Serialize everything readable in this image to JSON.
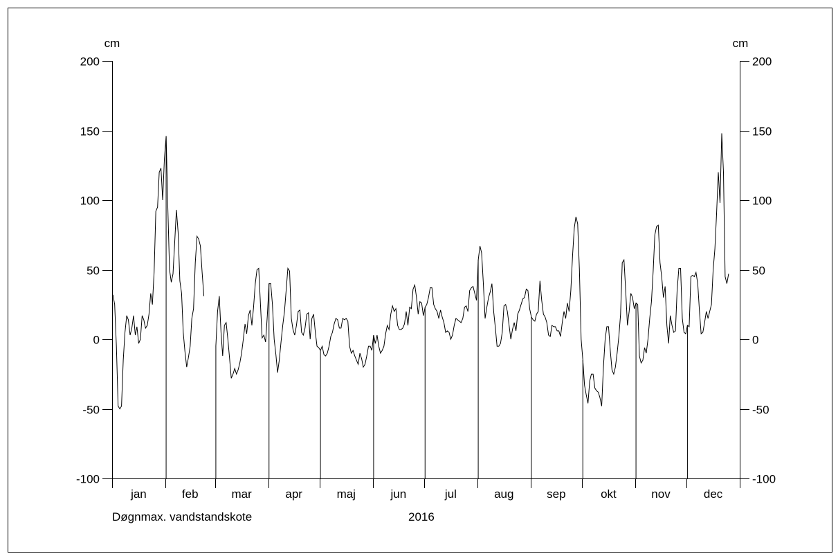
{
  "chart_data": {
    "type": "line",
    "title": "",
    "year_label": "2016",
    "series_label": "Døgnmax. vandstandskote",
    "ylabel_left": "cm",
    "ylabel_right": "cm",
    "ylim": [
      -100,
      200
    ],
    "yticks": [
      200,
      150,
      100,
      50,
      0,
      -50,
      -100
    ],
    "grid": false,
    "color": "#000000",
    "x_start": "2016-01-01",
    "x_end": "2016-12-31",
    "months": [
      "jan",
      "feb",
      "mar",
      "apr",
      "maj",
      "jun",
      "jul",
      "aug",
      "sep",
      "okt",
      "nov",
      "dec"
    ],
    "series": [
      {
        "name": "Døgnmax. vandstandskote",
        "values": [
          32,
          25,
          -5,
          -48,
          -50,
          -48,
          -15,
          5,
          17,
          14,
          3,
          8,
          17,
          3,
          9,
          -3,
          0,
          17,
          14,
          8,
          10,
          18,
          33,
          25,
          48,
          92,
          95,
          120,
          123,
          100,
          130,
          146,
          95,
          50,
          41,
          47,
          70,
          93,
          77,
          42,
          33,
          5,
          -9,
          -20,
          -13,
          -5,
          15,
          22,
          55,
          74,
          72,
          67,
          48,
          31,
          null,
          null,
          null,
          null,
          null,
          null,
          -5,
          20,
          31,
          5,
          -12,
          10,
          12,
          0,
          -14,
          -28,
          -25,
          -21,
          -25,
          -22,
          -17,
          -10,
          0,
          11,
          4,
          17,
          21,
          10,
          23,
          40,
          50,
          51,
          25,
          1,
          3,
          -2,
          17,
          40,
          40,
          25,
          0,
          -11,
          -24,
          -15,
          -2,
          10,
          20,
          35,
          51,
          49,
          15,
          7,
          3,
          10,
          20,
          21,
          5,
          3,
          8,
          18,
          19,
          0,
          15,
          18,
          5,
          -5,
          -6,
          -8,
          -5,
          -11,
          -12,
          -10,
          -5,
          2,
          5,
          11,
          15,
          14,
          8,
          8,
          15,
          14,
          15,
          13,
          -5,
          -10,
          -8,
          -12,
          -15,
          -18,
          -10,
          -14,
          -20,
          -18,
          -12,
          -5,
          -5,
          -8,
          3,
          -3,
          3,
          -5,
          -10,
          -8,
          -5,
          4,
          10,
          7,
          18,
          24,
          20,
          22,
          10,
          7,
          7,
          8,
          11,
          20,
          10,
          23,
          22,
          36,
          39,
          30,
          18,
          27,
          26,
          17,
          23,
          25,
          30,
          37,
          37,
          25,
          22,
          20,
          15,
          21,
          16,
          12,
          5,
          6,
          5,
          0,
          3,
          10,
          15,
          14,
          13,
          12,
          15,
          23,
          24,
          20,
          35,
          37,
          38,
          33,
          28,
          57,
          67,
          62,
          40,
          15,
          23,
          30,
          34,
          40,
          20,
          8,
          -5,
          -5,
          -3,
          5,
          24,
          25,
          20,
          10,
          0,
          7,
          12,
          6,
          18,
          21,
          25,
          29,
          30,
          36,
          35,
          22,
          16,
          14,
          13,
          18,
          20,
          42,
          28,
          18,
          16,
          12,
          3,
          2,
          10,
          9,
          9,
          6,
          6,
          2,
          12,
          20,
          15,
          26,
          20,
          35,
          60,
          80,
          88,
          83,
          50,
          0,
          -15,
          -33,
          -40,
          -46,
          -30,
          -25,
          -25,
          -35,
          -37,
          -38,
          -42,
          -48,
          -20,
          0,
          9,
          9,
          -8,
          -22,
          -25,
          -20,
          -10,
          2,
          18,
          55,
          57,
          35,
          10,
          20,
          33,
          30,
          22,
          26,
          25,
          -12,
          -17,
          -15,
          -6,
          -10,
          0,
          15,
          27,
          49,
          75,
          81,
          82,
          55,
          45,
          30,
          38,
          10,
          -3,
          17,
          10,
          5,
          6,
          35,
          51,
          51,
          15,
          5,
          4,
          10,
          9,
          45,
          46,
          45,
          48,
          40,
          20,
          4,
          5,
          12,
          20,
          15,
          20,
          25,
          50,
          65,
          90,
          120,
          98,
          148,
          120,
          45,
          40,
          47
        ]
      }
    ]
  }
}
